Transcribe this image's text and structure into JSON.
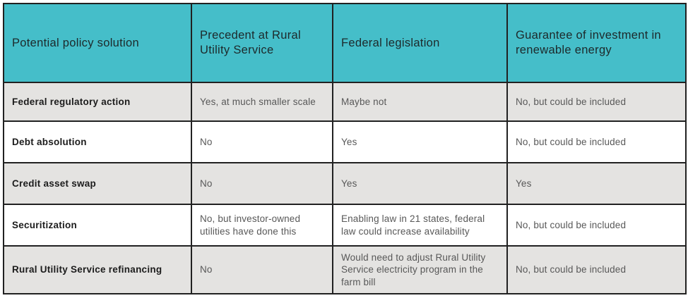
{
  "table": {
    "headers": [
      "Potential policy solution",
      "Precedent at Rural Utility Service",
      "Federal legislation",
      "Guarantee of investment in renewable energy"
    ],
    "rows": [
      {
        "cells": [
          "Federal regulatory action",
          "Yes, at much smaller scale",
          "Maybe not",
          "No, but could be included"
        ]
      },
      {
        "cells": [
          "Debt absolution",
          "No",
          "Yes",
          "No, but could be included"
        ]
      },
      {
        "cells": [
          "Credit asset swap",
          "No",
          "Yes",
          "Yes"
        ]
      },
      {
        "cells": [
          "Securitization",
          "No, but investor-owned utilities have done this",
          "Enabling law in 21 states, federal law could increase availability",
          "No, but could be included"
        ]
      },
      {
        "cells": [
          "Rural Utility Service refinancing",
          "No",
          "Would need to adjust Rural Utility Service electricity program in the farm bill",
          "No, but could be included"
        ]
      }
    ]
  },
  "colors": {
    "header-bg": "#45bec9",
    "row-alt-bg": "#e4e3e1",
    "border-color": "#212121",
    "header-text": "#1d292b",
    "label-text": "#1c1c1c",
    "body-text": "#585858"
  }
}
